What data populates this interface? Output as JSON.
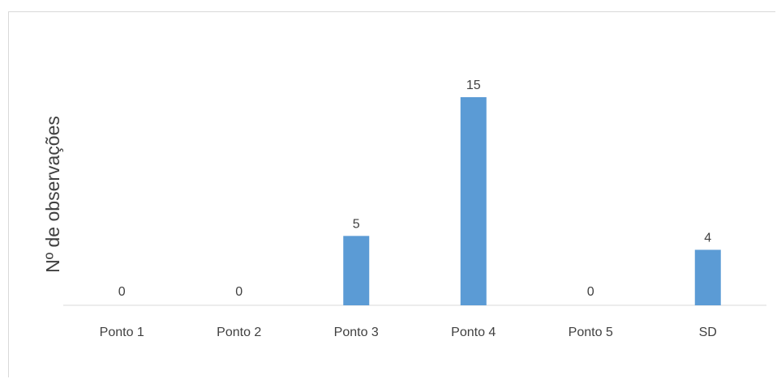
{
  "chart_data": {
    "type": "bar",
    "title": "",
    "xlabel": "",
    "ylabel": "Nº de observações",
    "categories": [
      "Ponto 1",
      "Ponto 2",
      "Ponto 3",
      "Ponto 4",
      "Ponto 5",
      "SD"
    ],
    "values": [
      0,
      0,
      5,
      15,
      0,
      4
    ],
    "ylim": [
      0,
      15
    ],
    "grid": false,
    "legend": "none",
    "colors": {
      "bar": "#5b9bd5",
      "axis": "#d9d9d9",
      "text": "#404040"
    }
  }
}
